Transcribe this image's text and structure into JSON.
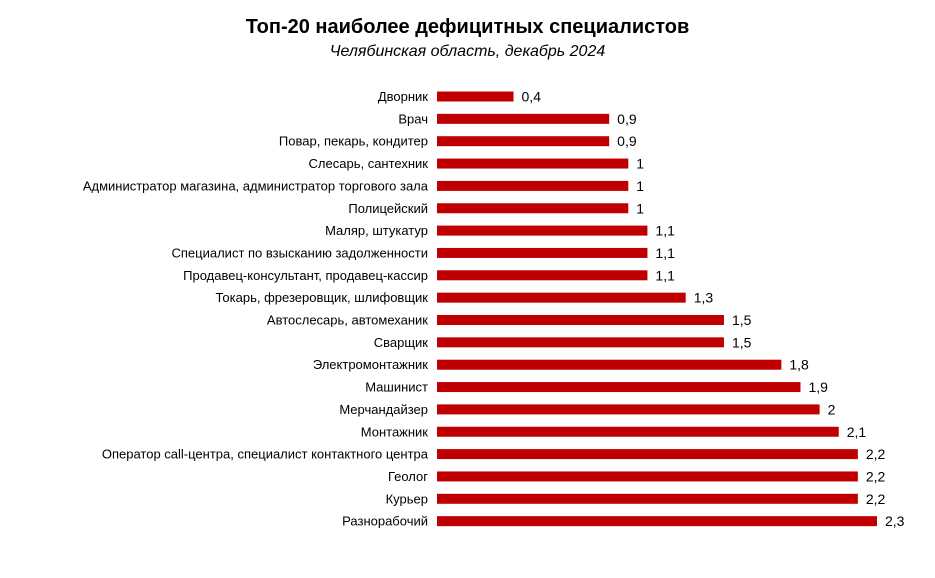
{
  "chart_data": {
    "type": "bar",
    "orientation": "horizontal",
    "title": "Топ-20 наиболее дефицитных специалистов",
    "subtitle": "Челябинская область, декабрь 2024",
    "bar_color": "#c00000",
    "categories": [
      "Дворник",
      "Врач",
      "Повар, пекарь, кондитер",
      "Слесарь, сантехник",
      "Администратор магазина, администратор торгового зала",
      "Полицейский",
      "Маляр, штукатур",
      "Специалист по взысканию задолженности",
      "Продавец-консультант, продавец-кассир",
      "Токарь, фрезеровщик, шлифовщик",
      "Автослесарь, автомеханик",
      "Сварщик",
      "Электромонтажник",
      "Машинист",
      "Мерчандайзер",
      "Монтажник",
      "Оператор call-центра, специалист контактного центра",
      "Геолог",
      "Курьер",
      "Разнорабочий"
    ],
    "values": [
      0.4,
      0.9,
      0.9,
      1,
      1,
      1,
      1.1,
      1.1,
      1.1,
      1.3,
      1.5,
      1.5,
      1.8,
      1.9,
      2,
      2.1,
      2.2,
      2.2,
      2.2,
      2.3
    ],
    "value_labels": [
      "0,4",
      "0,9",
      "0,9",
      "1",
      "1",
      "1",
      "1,1",
      "1,1",
      "1,1",
      "1,3",
      "1,5",
      "1,5",
      "1,8",
      "1,9",
      "2",
      "2,1",
      "2,2",
      "2,2",
      "2,2",
      "2,3"
    ],
    "xlim": [
      0,
      2.3
    ],
    "grid": false,
    "legend": "none"
  }
}
